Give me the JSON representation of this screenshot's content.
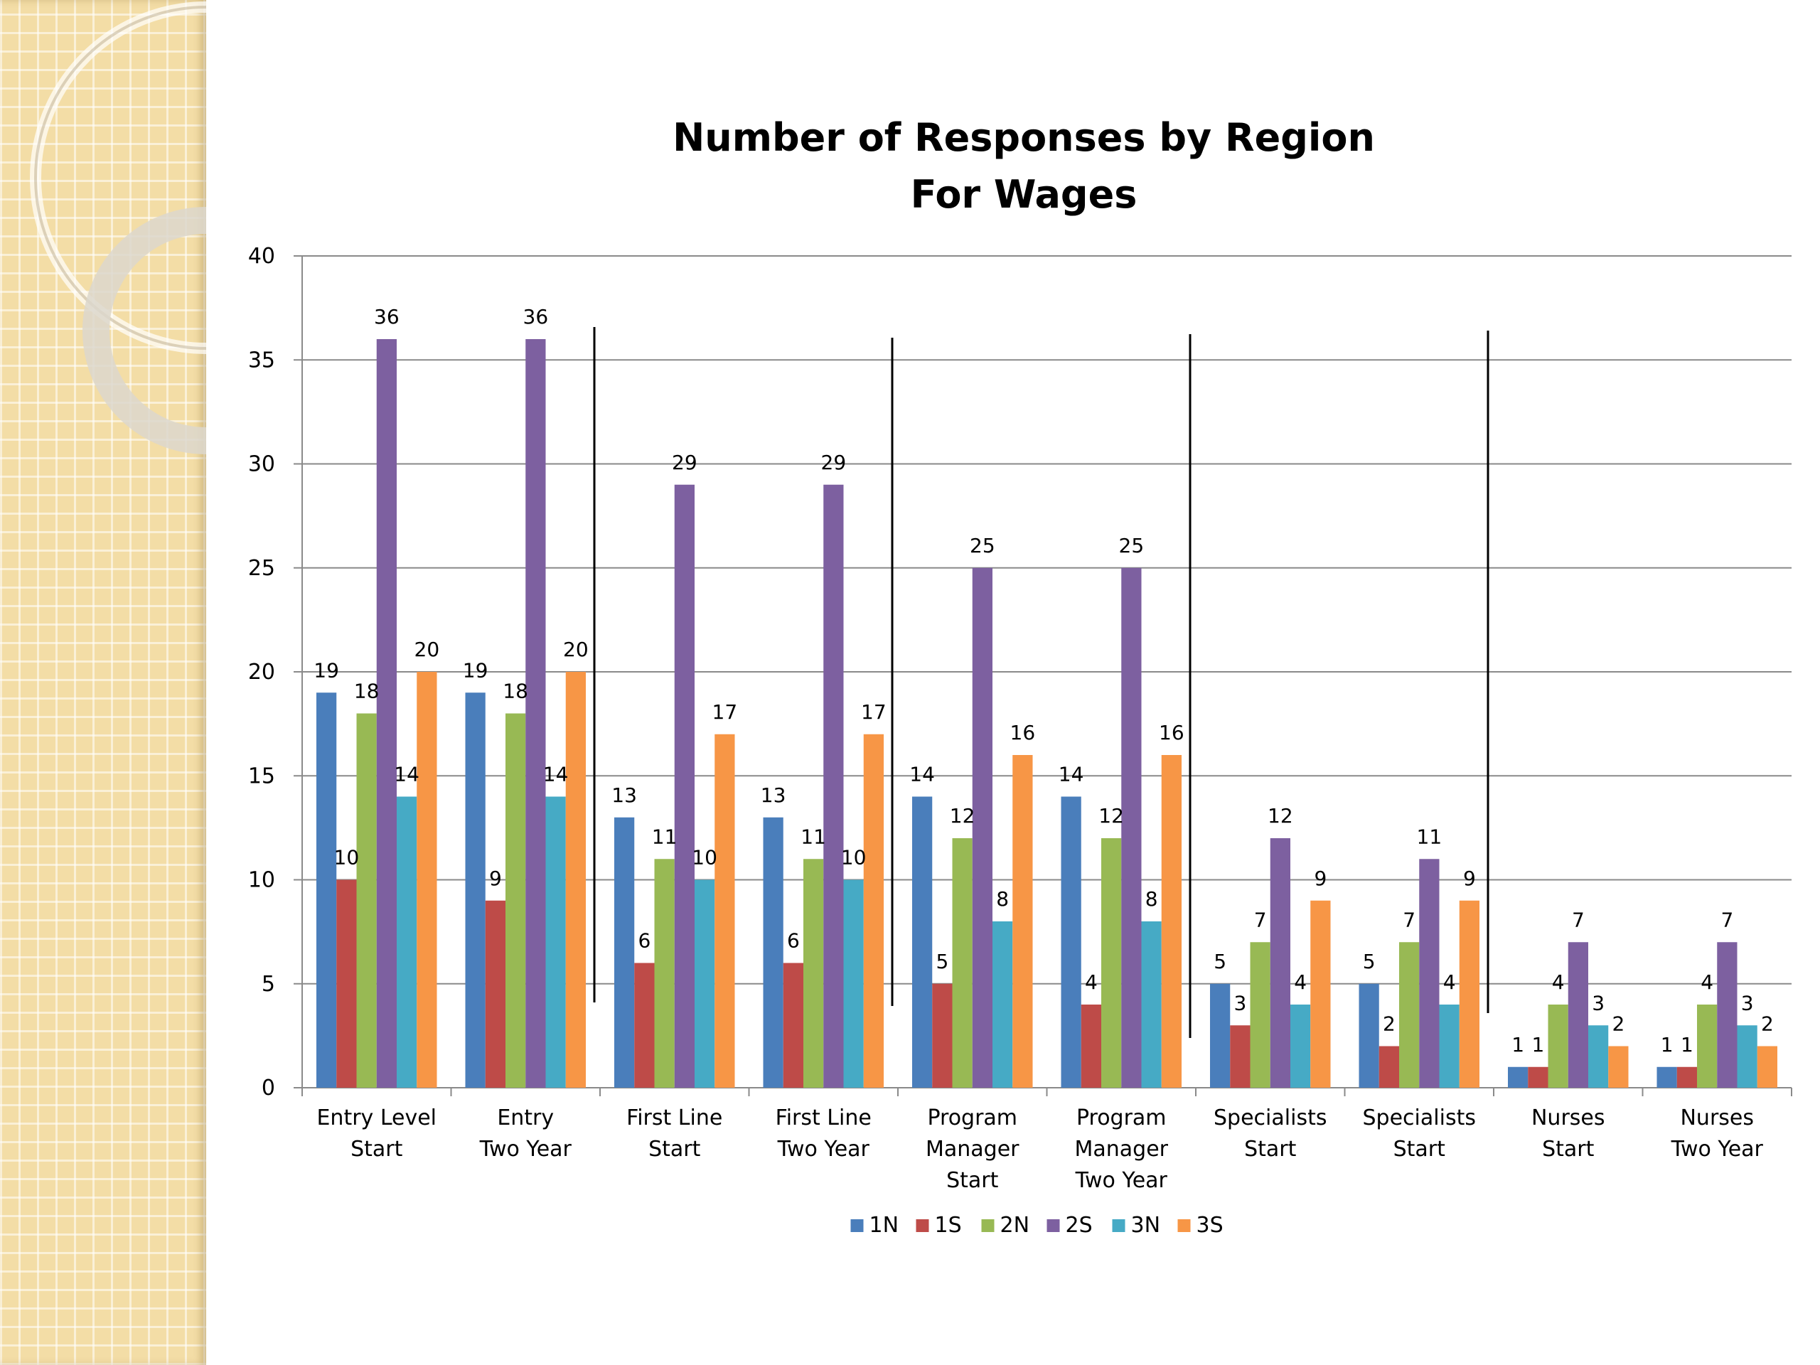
{
  "chart_data": {
    "type": "bar",
    "title_lines": [
      "Number of Responses by Region",
      "For Wages"
    ],
    "categories": [
      [
        "Entry Level",
        "Start"
      ],
      [
        "Entry",
        "Two Year"
      ],
      [
        "First Line",
        "Start"
      ],
      [
        "First Line",
        "Two Year"
      ],
      [
        "Program",
        "Manager",
        "Start"
      ],
      [
        "Program",
        "Manager",
        "Two Year"
      ],
      [
        "Specialists",
        "Start"
      ],
      [
        "Specialists",
        "Start"
      ],
      [
        "Nurses",
        "Start"
      ],
      [
        "Nurses",
        "Two Year"
      ]
    ],
    "series": [
      {
        "name": "1N",
        "color": "#4a7ebb",
        "values": [
          19,
          19,
          13,
          13,
          14,
          14,
          5,
          5,
          1,
          1
        ]
      },
      {
        "name": "1S",
        "color": "#be4b48",
        "values": [
          10,
          9,
          6,
          6,
          5,
          4,
          3,
          2,
          1,
          1
        ]
      },
      {
        "name": "2N",
        "color": "#98b954",
        "values": [
          18,
          18,
          11,
          11,
          12,
          12,
          7,
          7,
          4,
          4
        ]
      },
      {
        "name": "2S",
        "color": "#7d60a0",
        "values": [
          36,
          36,
          29,
          29,
          25,
          25,
          12,
          11,
          7,
          7
        ]
      },
      {
        "name": "3N",
        "color": "#46aac5",
        "values": [
          14,
          14,
          10,
          10,
          8,
          8,
          4,
          4,
          3,
          3
        ]
      },
      {
        "name": "3S",
        "color": "#f79646",
        "values": [
          20,
          20,
          17,
          17,
          16,
          16,
          9,
          9,
          2,
          2
        ]
      }
    ],
    "ylim": [
      0,
      40
    ],
    "yticks": [
      0,
      5,
      10,
      15,
      20,
      25,
      30,
      35,
      40
    ],
    "grid": true,
    "data_labels": true,
    "legend": "bottom",
    "divider_after_categories": [
      2,
      4,
      6,
      8
    ]
  }
}
